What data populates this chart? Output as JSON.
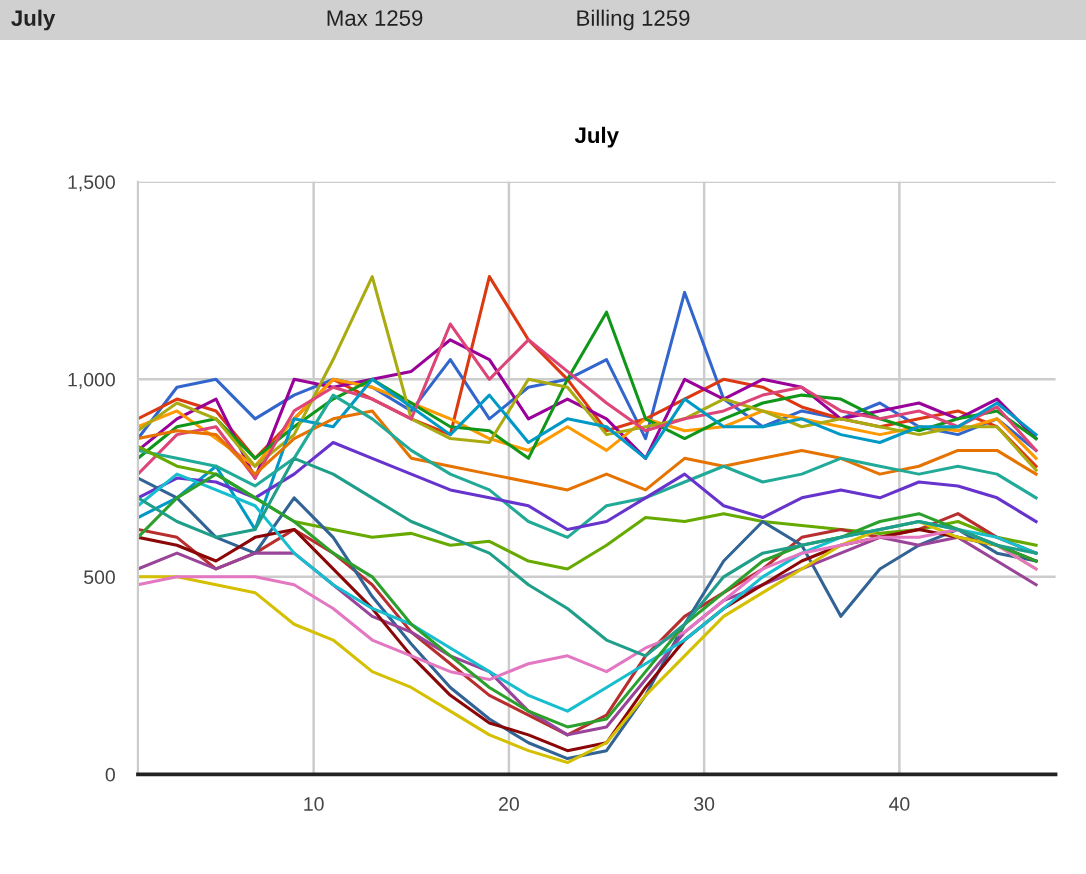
{
  "chart_data": {
    "type": "line",
    "title": "July",
    "annotations": [
      "July",
      "Max 1259",
      "Billing 1259"
    ],
    "x": [
      1,
      3,
      5,
      7,
      9,
      11,
      13,
      15,
      17,
      19,
      21,
      23,
      25,
      27,
      29,
      31,
      33,
      35,
      37,
      39,
      41,
      43,
      45,
      47
    ],
    "xlim": [
      1,
      48
    ],
    "xticks": [
      10,
      20,
      30,
      40
    ],
    "ylim": [
      0,
      1500
    ],
    "yticks": [
      0,
      500,
      {
        "value": 1000,
        "label": "1,000"
      },
      {
        "value": 1500,
        "label": "1,500"
      }
    ],
    "grid": true,
    "legend": false,
    "marker": "none",
    "line_style": "solid",
    "series": [
      {
        "color": "#3366cc",
        "values": [
          850,
          980,
          1000,
          900,
          960,
          1000,
          980,
          920,
          1050,
          900,
          980,
          1000,
          1050,
          850,
          1220,
          950,
          880,
          920,
          900,
          940,
          880,
          860,
          900,
          820
        ]
      },
      {
        "color": "#dc3912",
        "values": [
          900,
          950,
          920,
          800,
          900,
          1000,
          950,
          900,
          860,
          1260,
          1100,
          1000,
          870,
          900,
          950,
          1000,
          980,
          930,
          900,
          880,
          900,
          920,
          880,
          780
        ]
      },
      {
        "color": "#990099",
        "values": [
          820,
          900,
          950,
          750,
          1000,
          980,
          1000,
          1020,
          1100,
          1050,
          900,
          950,
          900,
          800,
          1000,
          950,
          1000,
          980,
          900,
          920,
          940,
          900,
          950,
          850
        ]
      },
      {
        "color": "#ff9900",
        "values": [
          880,
          920,
          850,
          780,
          900,
          1000,
          980,
          940,
          900,
          850,
          820,
          880,
          820,
          900,
          870,
          880,
          920,
          900,
          880,
          860,
          880,
          870,
          900,
          800
        ]
      },
      {
        "color": "#109618",
        "values": [
          800,
          880,
          900,
          800,
          880,
          950,
          1000,
          940,
          880,
          870,
          800,
          1000,
          1170,
          900,
          850,
          900,
          940,
          960,
          950,
          900,
          870,
          900,
          920,
          850
        ]
      },
      {
        "color": "#aaaa11",
        "values": [
          870,
          940,
          900,
          780,
          860,
          1050,
          1260,
          900,
          850,
          840,
          1000,
          980,
          860,
          880,
          900,
          950,
          920,
          880,
          900,
          880,
          860,
          880,
          880,
          770
        ]
      },
      {
        "color": "#dd4477",
        "values": [
          760,
          860,
          880,
          750,
          920,
          980,
          950,
          900,
          1140,
          1000,
          1100,
          1020,
          940,
          870,
          900,
          920,
          960,
          980,
          920,
          900,
          920,
          880,
          930,
          820
        ]
      },
      {
        "color": "#0099c6",
        "values": [
          650,
          700,
          780,
          620,
          900,
          880,
          1000,
          930,
          860,
          960,
          840,
          900,
          880,
          800,
          950,
          880,
          880,
          900,
          860,
          840,
          880,
          880,
          940,
          860
        ]
      },
      {
        "color": "#e67300",
        "values": [
          850,
          870,
          860,
          760,
          850,
          900,
          920,
          800,
          780,
          760,
          740,
          720,
          760,
          720,
          800,
          780,
          800,
          820,
          800,
          760,
          780,
          820,
          820,
          760
        ]
      },
      {
        "color": "#22aa99",
        "values": [
          820,
          800,
          780,
          730,
          800,
          960,
          900,
          820,
          760,
          720,
          640,
          600,
          680,
          700,
          740,
          780,
          740,
          760,
          800,
          780,
          760,
          780,
          760,
          700
        ]
      },
      {
        "color": "#6633cc",
        "values": [
          700,
          750,
          740,
          700,
          760,
          840,
          800,
          760,
          720,
          700,
          680,
          620,
          640,
          700,
          760,
          680,
          650,
          700,
          720,
          700,
          740,
          730,
          700,
          640
        ]
      },
      {
        "color": "#66aa00",
        "values": [
          830,
          780,
          760,
          700,
          640,
          620,
          600,
          610,
          580,
          590,
          540,
          520,
          580,
          650,
          640,
          660,
          640,
          630,
          620,
          610,
          620,
          640,
          600,
          580
        ]
      },
      {
        "color": "#b82e2e",
        "values": [
          620,
          600,
          520,
          560,
          620,
          560,
          480,
          360,
          280,
          200,
          150,
          100,
          150,
          300,
          400,
          460,
          520,
          600,
          620,
          600,
          620,
          660,
          600,
          560
        ]
      },
      {
        "color": "#316395",
        "values": [
          750,
          700,
          600,
          560,
          700,
          600,
          450,
          330,
          220,
          140,
          80,
          40,
          60,
          200,
          380,
          540,
          640,
          580,
          400,
          520,
          580,
          620,
          560,
          540
        ]
      },
      {
        "color": "#994499",
        "values": [
          520,
          560,
          520,
          560,
          560,
          480,
          400,
          360,
          300,
          260,
          160,
          100,
          120,
          240,
          360,
          440,
          480,
          520,
          560,
          600,
          580,
          600,
          540,
          480
        ]
      },
      {
        "color": "#8b0707",
        "values": [
          600,
          580,
          540,
          600,
          620,
          520,
          420,
          300,
          200,
          130,
          100,
          60,
          80,
          220,
          340,
          420,
          480,
          540,
          580,
          600,
          620,
          600,
          580,
          540
        ]
      },
      {
        "color": "#d4c000",
        "values": [
          500,
          500,
          480,
          460,
          380,
          340,
          260,
          220,
          160,
          100,
          60,
          30,
          80,
          200,
          300,
          400,
          460,
          520,
          580,
          620,
          640,
          600,
          580,
          520
        ]
      },
      {
        "color": "#17becf",
        "values": [
          680,
          760,
          720,
          680,
          560,
          480,
          420,
          380,
          320,
          260,
          200,
          160,
          220,
          280,
          340,
          420,
          500,
          560,
          600,
          620,
          640,
          620,
          600,
          560
        ]
      },
      {
        "color": "#e377c2",
        "values": [
          480,
          500,
          500,
          500,
          480,
          420,
          340,
          300,
          260,
          240,
          280,
          300,
          260,
          320,
          360,
          440,
          520,
          560,
          580,
          600,
          600,
          620,
          580,
          520
        ]
      },
      {
        "color": "#2ca02c",
        "values": [
          600,
          700,
          760,
          700,
          640,
          560,
          500,
          380,
          300,
          220,
          160,
          120,
          140,
          260,
          380,
          460,
          540,
          580,
          600,
          640,
          660,
          620,
          580,
          540
        ]
      },
      {
        "color": "#1f9e89",
        "values": [
          700,
          640,
          600,
          620,
          800,
          760,
          700,
          640,
          600,
          560,
          480,
          420,
          340,
          300,
          380,
          500,
          560,
          580,
          600,
          620,
          640,
          620,
          580,
          560
        ]
      }
    ]
  }
}
